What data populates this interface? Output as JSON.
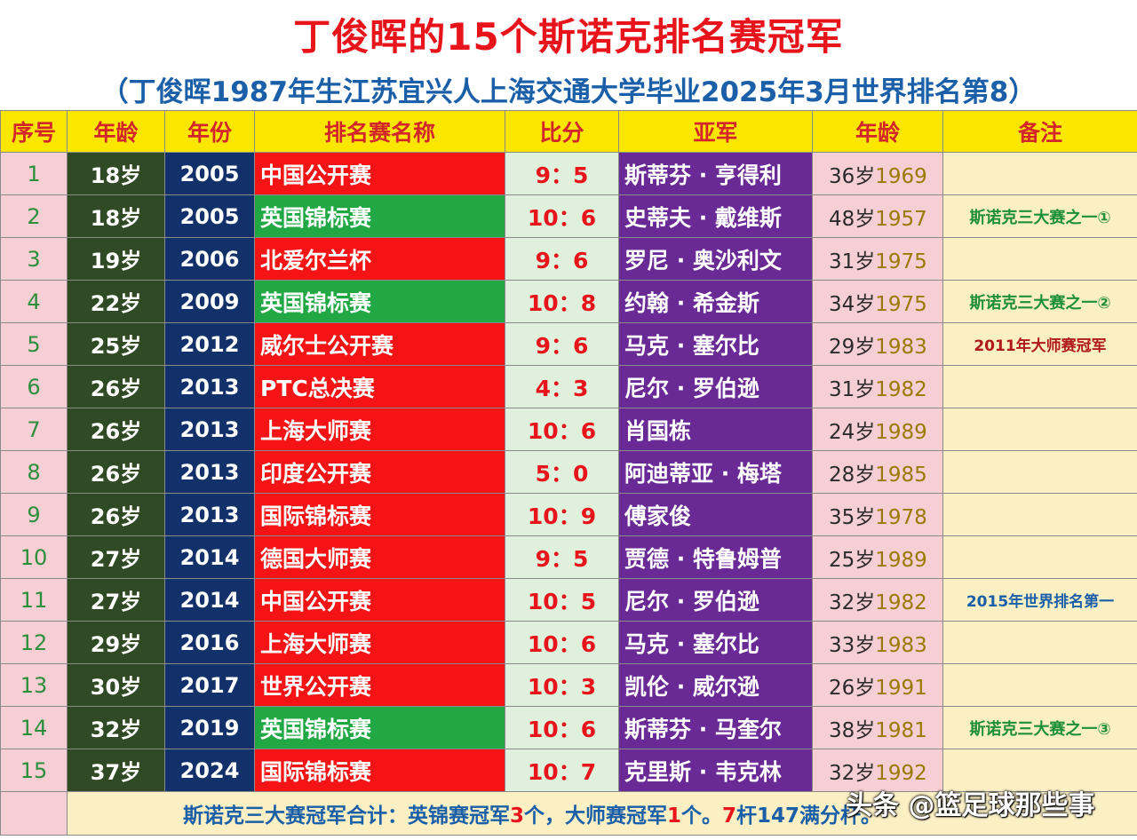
{
  "title": "丁俊晖的15个斯诺克排名赛冠军",
  "subtitle": "（丁俊晖1987年生江苏宜兴人上海交通大学毕业2025年3月世界排名第8）",
  "headers": [
    "序号",
    "年龄",
    "年份",
    "排名赛名称",
    "比分",
    "亚军",
    "年龄",
    "备注"
  ],
  "rows": [
    {
      "seq": "1",
      "age": "18岁",
      "year": "2005",
      "event": "中国公开赛",
      "event_color": "red",
      "score": "9：5",
      "runner": "斯蒂芬 · 亨得利",
      "r_age": "36岁",
      "r_year": "1969",
      "note": "",
      "note_color": ""
    },
    {
      "seq": "2",
      "age": "18岁",
      "year": "2005",
      "event": "英国锦标赛",
      "event_color": "green",
      "score": "10：6",
      "runner": "史蒂夫 · 戴维斯",
      "r_age": "48岁",
      "r_year": "1957",
      "note": "斯诺克三大赛之一①",
      "note_color": "green"
    },
    {
      "seq": "3",
      "age": "19岁",
      "year": "2006",
      "event": "北爱尔兰杯",
      "event_color": "red",
      "score": "9：6",
      "runner": "罗尼 · 奥沙利文",
      "r_age": "31岁",
      "r_year": "1975",
      "note": "",
      "note_color": ""
    },
    {
      "seq": "4",
      "age": "22岁",
      "year": "2009",
      "event": "英国锦标赛",
      "event_color": "green",
      "score": "10：8",
      "runner": "约翰 · 希金斯",
      "r_age": "34岁",
      "r_year": "1975",
      "note": "斯诺克三大赛之一②",
      "note_color": "green"
    },
    {
      "seq": "5",
      "age": "25岁",
      "year": "2012",
      "event": "威尔士公开赛",
      "event_color": "red",
      "score": "9：6",
      "runner": "马克 · 塞尔比",
      "r_age": "29岁",
      "r_year": "1983",
      "note": "2011年大师赛冠军",
      "note_color": "red"
    },
    {
      "seq": "6",
      "age": "26岁",
      "year": "2013",
      "event": "PTC总决赛",
      "event_color": "red",
      "score": "4：3",
      "runner": "尼尔 · 罗伯逊",
      "r_age": "31岁",
      "r_year": "1982",
      "note": "",
      "note_color": ""
    },
    {
      "seq": "7",
      "age": "26岁",
      "year": "2013",
      "event": "上海大师赛",
      "event_color": "red",
      "score": "10：6",
      "runner": "肖国栋",
      "r_age": "24岁",
      "r_year": "1989",
      "note": "",
      "note_color": ""
    },
    {
      "seq": "8",
      "age": "26岁",
      "year": "2013",
      "event": "印度公开赛",
      "event_color": "red",
      "score": "5：0",
      "runner": "阿迪蒂亚 · 梅塔",
      "r_age": "28岁",
      "r_year": "1985",
      "note": "",
      "note_color": ""
    },
    {
      "seq": "9",
      "age": "26岁",
      "year": "2013",
      "event": "国际锦标赛",
      "event_color": "red",
      "score": "10：9",
      "runner": "傅家俊",
      "r_age": "35岁",
      "r_year": "1978",
      "note": "",
      "note_color": ""
    },
    {
      "seq": "10",
      "age": "27岁",
      "year": "2014",
      "event": "德国大师赛",
      "event_color": "red",
      "score": "9：5",
      "runner": "贾德 · 特鲁姆普",
      "r_age": "25岁",
      "r_year": "1989",
      "note": "",
      "note_color": ""
    },
    {
      "seq": "11",
      "age": "27岁",
      "year": "2014",
      "event": "中国公开赛",
      "event_color": "red",
      "score": "10：5",
      "runner": "尼尔 · 罗伯逊",
      "r_age": "32岁",
      "r_year": "1982",
      "note": "2015年世界排名第一",
      "note_color": "blue"
    },
    {
      "seq": "12",
      "age": "29岁",
      "year": "2016",
      "event": "上海大师赛",
      "event_color": "red",
      "score": "10：6",
      "runner": "马克 · 塞尔比",
      "r_age": "33岁",
      "r_year": "1983",
      "note": "",
      "note_color": ""
    },
    {
      "seq": "13",
      "age": "30岁",
      "year": "2017",
      "event": "世界公开赛",
      "event_color": "red",
      "score": "10：3",
      "runner": "凯伦 · 威尔逊",
      "r_age": "26岁",
      "r_year": "1991",
      "note": "",
      "note_color": ""
    },
    {
      "seq": "14",
      "age": "32岁",
      "year": "2019",
      "event": "英国锦标赛",
      "event_color": "green",
      "score": "10：6",
      "runner": "斯蒂芬 · 马奎尔",
      "r_age": "38岁",
      "r_year": "1981",
      "note": "斯诺克三大赛之一③",
      "note_color": "green"
    },
    {
      "seq": "15",
      "age": "37岁",
      "year": "2024",
      "event": "国际锦标赛",
      "event_color": "red",
      "score": "10：7",
      "runner": "克里斯 · 韦克林",
      "r_age": "32岁",
      "r_year": "1992",
      "note": "",
      "note_color": ""
    }
  ],
  "footer": {
    "prefix": "斯诺克三大赛冠军合计：英锦赛冠军",
    "uk_count": "3",
    "middle": "个，大师赛冠军",
    "masters_count": "1",
    "suffix": "个。",
    "tail_count": "7",
    "tail": "杆147满分杆。"
  },
  "watermark": "头条 @篮足球那些事"
}
